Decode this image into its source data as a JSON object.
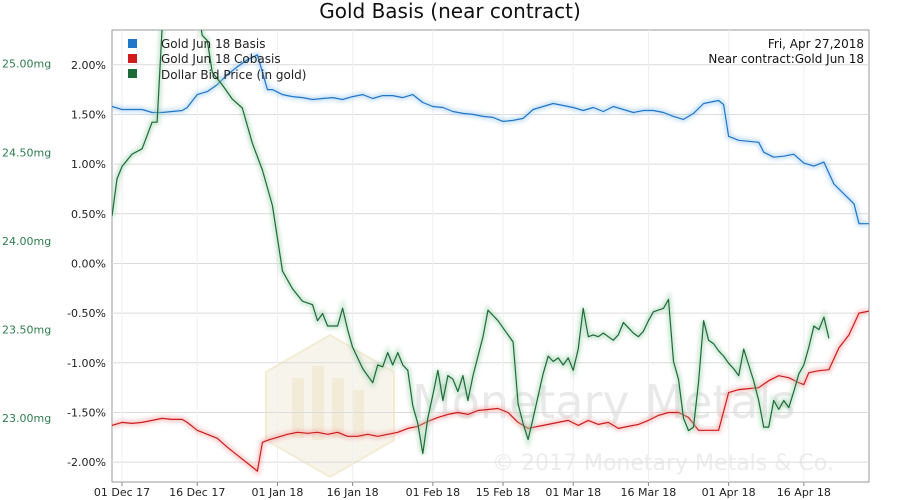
{
  "chart_data": {
    "type": "line",
    "title": "Gold Basis (near contract)",
    "date_label": "Fri, Apr 27,2018",
    "contract_label": "Near contract:Gold Jun 18",
    "watermark_brand": "Monetary Metals",
    "watermark_copyright": "© 2017 Monetary Metals & Co.",
    "y_left": {
      "ticks": [
        2.0,
        1.5,
        1.0,
        0.5,
        0.0,
        -0.5,
        -1.0,
        -1.5,
        -2.0
      ],
      "tick_labels": [
        "2.00%",
        "1.50%",
        "1.00%",
        "0.50%",
        "0.00%",
        "-0.50%",
        "-1.00%",
        "-1.50%",
        "-2.00%"
      ],
      "range": [
        -2.2,
        2.35
      ]
    },
    "y_right": {
      "ticks": [
        25.0,
        24.5,
        24.0,
        23.5,
        23.0
      ],
      "tick_labels": [
        "25.00mg",
        "24.50mg",
        "24.00mg",
        "23.50mg",
        "23.00mg"
      ],
      "range": [
        22.64,
        25.19
      ]
    },
    "x_axis": {
      "tick_labels": [
        "01 Dec 17",
        "16 Dec 17",
        "01 Jan 18",
        "16 Jan 18",
        "01 Feb 18",
        "15 Feb 18",
        "01 Mar 18",
        "16 Mar 18",
        "01 Apr 18",
        "16 Apr 18"
      ],
      "tick_days": [
        0,
        15,
        31,
        46,
        62,
        76,
        90,
        105,
        121,
        136
      ],
      "range_days": [
        -2,
        149
      ]
    },
    "grid": true,
    "legend_position": "top-left",
    "series": [
      {
        "name": "Gold Jun 18 Basis",
        "axis": "left",
        "color": "#1f77c9",
        "points": [
          [
            -2,
            1.58
          ],
          [
            0,
            1.55
          ],
          [
            2,
            1.55
          ],
          [
            4,
            1.55
          ],
          [
            6,
            1.52
          ],
          [
            8,
            1.52
          ],
          [
            10,
            1.53
          ],
          [
            12,
            1.54
          ],
          [
            13,
            1.57
          ],
          [
            15,
            1.7
          ],
          [
            17,
            1.73
          ],
          [
            19,
            1.8
          ],
          [
            21,
            1.9
          ],
          [
            23,
            1.98
          ],
          [
            25,
            2.05
          ],
          [
            27,
            2.1
          ],
          [
            29,
            1.75
          ],
          [
            30,
            1.75
          ],
          [
            32,
            1.7
          ],
          [
            34,
            1.68
          ],
          [
            36,
            1.67
          ],
          [
            38,
            1.65
          ],
          [
            40,
            1.66
          ],
          [
            42,
            1.67
          ],
          [
            44,
            1.65
          ],
          [
            46,
            1.68
          ],
          [
            48,
            1.7
          ],
          [
            50,
            1.66
          ],
          [
            52,
            1.69
          ],
          [
            54,
            1.69
          ],
          [
            56,
            1.67
          ],
          [
            58,
            1.7
          ],
          [
            60,
            1.62
          ],
          [
            62,
            1.58
          ],
          [
            64,
            1.57
          ],
          [
            66,
            1.53
          ],
          [
            68,
            1.51
          ],
          [
            70,
            1.5
          ],
          [
            72,
            1.48
          ],
          [
            74,
            1.47
          ],
          [
            76,
            1.43
          ],
          [
            78,
            1.44
          ],
          [
            80,
            1.46
          ],
          [
            82,
            1.55
          ],
          [
            84,
            1.58
          ],
          [
            86,
            1.61
          ],
          [
            88,
            1.59
          ],
          [
            90,
            1.57
          ],
          [
            92,
            1.54
          ],
          [
            94,
            1.57
          ],
          [
            96,
            1.53
          ],
          [
            98,
            1.58
          ],
          [
            100,
            1.55
          ],
          [
            102,
            1.52
          ],
          [
            104,
            1.54
          ],
          [
            106,
            1.54
          ],
          [
            108,
            1.52
          ],
          [
            110,
            1.48
          ],
          [
            112,
            1.45
          ],
          [
            114,
            1.51
          ],
          [
            116,
            1.61
          ],
          [
            118,
            1.63
          ],
          [
            119,
            1.64
          ],
          [
            120,
            1.6
          ],
          [
            121,
            1.28
          ],
          [
            123,
            1.24
          ],
          [
            125,
            1.23
          ],
          [
            127,
            1.22
          ],
          [
            128,
            1.12
          ],
          [
            130,
            1.07
          ],
          [
            132,
            1.08
          ],
          [
            134,
            1.1
          ],
          [
            136,
            1.01
          ],
          [
            138,
            0.98
          ],
          [
            140,
            1.02
          ],
          [
            142,
            0.8
          ],
          [
            144,
            0.7
          ],
          [
            146,
            0.6
          ],
          [
            147,
            0.4
          ],
          [
            149,
            0.4
          ]
        ]
      },
      {
        "name": "Gold Jun 18 Cobasis",
        "axis": "left",
        "color": "#d01c1c",
        "points": [
          [
            -2,
            -1.63
          ],
          [
            0,
            -1.6
          ],
          [
            2,
            -1.61
          ],
          [
            4,
            -1.6
          ],
          [
            6,
            -1.58
          ],
          [
            8,
            -1.56
          ],
          [
            10,
            -1.57
          ],
          [
            12,
            -1.57
          ],
          [
            13,
            -1.6
          ],
          [
            15,
            -1.68
          ],
          [
            17,
            -1.72
          ],
          [
            19,
            -1.76
          ],
          [
            21,
            -1.85
          ],
          [
            23,
            -1.93
          ],
          [
            25,
            -2.01
          ],
          [
            27,
            -2.09
          ],
          [
            28,
            -1.8
          ],
          [
            29,
            -1.78
          ],
          [
            31,
            -1.75
          ],
          [
            33,
            -1.72
          ],
          [
            35,
            -1.7
          ],
          [
            37,
            -1.71
          ],
          [
            39,
            -1.7
          ],
          [
            41,
            -1.72
          ],
          [
            43,
            -1.7
          ],
          [
            45,
            -1.74
          ],
          [
            47,
            -1.74
          ],
          [
            49,
            -1.72
          ],
          [
            51,
            -1.74
          ],
          [
            53,
            -1.72
          ],
          [
            55,
            -1.7
          ],
          [
            57,
            -1.66
          ],
          [
            59,
            -1.64
          ],
          [
            61,
            -1.59
          ],
          [
            63,
            -1.55
          ],
          [
            65,
            -1.52
          ],
          [
            67,
            -1.5
          ],
          [
            69,
            -1.52
          ],
          [
            71,
            -1.48
          ],
          [
            73,
            -1.47
          ],
          [
            75,
            -1.46
          ],
          [
            77,
            -1.5
          ],
          [
            79,
            -1.6
          ],
          [
            81,
            -1.66
          ],
          [
            83,
            -1.64
          ],
          [
            85,
            -1.62
          ],
          [
            87,
            -1.6
          ],
          [
            89,
            -1.58
          ],
          [
            91,
            -1.63
          ],
          [
            93,
            -1.58
          ],
          [
            95,
            -1.62
          ],
          [
            97,
            -1.6
          ],
          [
            99,
            -1.66
          ],
          [
            101,
            -1.64
          ],
          [
            103,
            -1.62
          ],
          [
            105,
            -1.58
          ],
          [
            107,
            -1.53
          ],
          [
            109,
            -1.5
          ],
          [
            111,
            -1.5
          ],
          [
            113,
            -1.55
          ],
          [
            115,
            -1.68
          ],
          [
            117,
            -1.68
          ],
          [
            119,
            -1.68
          ],
          [
            121,
            -1.3
          ],
          [
            123,
            -1.27
          ],
          [
            125,
            -1.26
          ],
          [
            127,
            -1.25
          ],
          [
            129,
            -1.18
          ],
          [
            131,
            -1.13
          ],
          [
            133,
            -1.15
          ],
          [
            135,
            -1.2
          ],
          [
            136,
            -1.22
          ],
          [
            137,
            -1.1
          ],
          [
            139,
            -1.08
          ],
          [
            141,
            -1.07
          ],
          [
            143,
            -0.85
          ],
          [
            145,
            -0.72
          ],
          [
            147,
            -0.5
          ],
          [
            149,
            -0.48
          ]
        ]
      },
      {
        "name": "Dollar Bid Price (in gold)",
        "axis": "right",
        "color": "#1d6b38",
        "points": [
          [
            -2,
            24.14
          ],
          [
            -1,
            24.35
          ],
          [
            0,
            24.42
          ],
          [
            2,
            24.49
          ],
          [
            4,
            24.52
          ],
          [
            6,
            24.67
          ],
          [
            7,
            24.67
          ],
          [
            8,
            25.2
          ],
          [
            9,
            25.36
          ],
          [
            10,
            25.45
          ],
          [
            12,
            25.48
          ],
          [
            14,
            25.4
          ],
          [
            15,
            25.35
          ],
          [
            16,
            25.16
          ],
          [
            17,
            25.13
          ],
          [
            18,
            24.95
          ],
          [
            20,
            24.88
          ],
          [
            22,
            24.8
          ],
          [
            24,
            24.75
          ],
          [
            26,
            24.55
          ],
          [
            28,
            24.4
          ],
          [
            30,
            24.2
          ],
          [
            32,
            23.83
          ],
          [
            34,
            23.73
          ],
          [
            36,
            23.66
          ],
          [
            38,
            23.64
          ],
          [
            39,
            23.55
          ],
          [
            40,
            23.59
          ],
          [
            41,
            23.52
          ],
          [
            42,
            23.52
          ],
          [
            43,
            23.52
          ],
          [
            44,
            23.62
          ],
          [
            45,
            23.5
          ],
          [
            46,
            23.4
          ],
          [
            48,
            23.28
          ],
          [
            50,
            23.2
          ],
          [
            51,
            23.3
          ],
          [
            52,
            23.29
          ],
          [
            53,
            23.37
          ],
          [
            54,
            23.3
          ],
          [
            55,
            23.37
          ],
          [
            56,
            23.3
          ],
          [
            57,
            23.27
          ],
          [
            58,
            23.07
          ],
          [
            59,
            22.97
          ],
          [
            60,
            22.8
          ],
          [
            61,
            23.0
          ],
          [
            62,
            23.13
          ],
          [
            63,
            23.27
          ],
          [
            64,
            23.1
          ],
          [
            65,
            23.24
          ],
          [
            66,
            23.22
          ],
          [
            67,
            23.15
          ],
          [
            68,
            23.24
          ],
          [
            69,
            23.1
          ],
          [
            70,
            23.24
          ],
          [
            71,
            23.35
          ],
          [
            72,
            23.46
          ],
          [
            73,
            23.61
          ],
          [
            75,
            23.55
          ],
          [
            76,
            23.51
          ],
          [
            78,
            23.43
          ],
          [
            79,
            23.08
          ],
          [
            80,
            22.97
          ],
          [
            81,
            22.88
          ],
          [
            82,
            23.0
          ],
          [
            84,
            23.25
          ],
          [
            85,
            23.35
          ],
          [
            86,
            23.32
          ],
          [
            87,
            23.34
          ],
          [
            88,
            23.3
          ],
          [
            89,
            23.34
          ],
          [
            90,
            23.27
          ],
          [
            91,
            23.39
          ],
          [
            92,
            23.62
          ],
          [
            93,
            23.46
          ],
          [
            94,
            23.47
          ],
          [
            95,
            23.46
          ],
          [
            96,
            23.48
          ],
          [
            97,
            23.46
          ],
          [
            98,
            23.44
          ],
          [
            99,
            23.47
          ],
          [
            100,
            23.54
          ],
          [
            101,
            23.51
          ],
          [
            102,
            23.48
          ],
          [
            103,
            23.46
          ],
          [
            104,
            23.49
          ],
          [
            105,
            23.55
          ],
          [
            106,
            23.6
          ],
          [
            107,
            23.61
          ],
          [
            108,
            23.62
          ],
          [
            109,
            23.67
          ],
          [
            110,
            23.32
          ],
          [
            111,
            23.22
          ],
          [
            112,
            23.0
          ],
          [
            113,
            22.93
          ],
          [
            114,
            22.95
          ],
          [
            115,
            23.2
          ],
          [
            116,
            23.55
          ],
          [
            117,
            23.44
          ],
          [
            118,
            23.42
          ],
          [
            119,
            23.38
          ],
          [
            120,
            23.35
          ],
          [
            121,
            23.31
          ],
          [
            122,
            23.28
          ],
          [
            123,
            23.24
          ],
          [
            124,
            23.39
          ],
          [
            125,
            23.3
          ],
          [
            126,
            23.21
          ],
          [
            127,
            23.1
          ],
          [
            128,
            22.95
          ],
          [
            129,
            22.95
          ],
          [
            130,
            23.1
          ],
          [
            131,
            23.05
          ],
          [
            132,
            23.1
          ],
          [
            133,
            23.06
          ],
          [
            134,
            23.15
          ],
          [
            135,
            23.25
          ],
          [
            136,
            23.3
          ],
          [
            137,
            23.4
          ],
          [
            138,
            23.52
          ],
          [
            139,
            23.5
          ],
          [
            140,
            23.57
          ],
          [
            141,
            23.45
          ]
        ]
      }
    ]
  }
}
